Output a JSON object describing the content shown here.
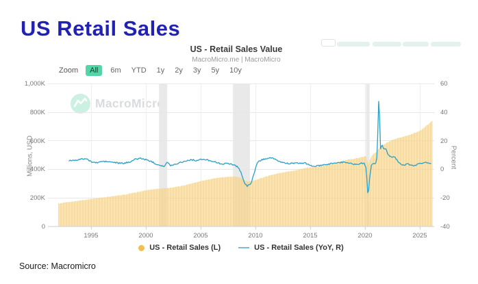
{
  "page": {
    "title": "US Retail Sales",
    "source": "Source: Macromicro"
  },
  "chart_header": {
    "title": "US - Retail Sales Value",
    "subtitle": "MacroMicro.me | MacroMicro"
  },
  "toolbar_chips": {
    "count": 5,
    "note": "truncated button chips at top-right edge"
  },
  "zoom_controls": {
    "label": "Zoom",
    "items": [
      "All",
      "6m",
      "YTD",
      "1y",
      "2y",
      "3y",
      "5y",
      "10y"
    ],
    "active": "All"
  },
  "watermark": {
    "text": "MacroMicro",
    "icon": "macromicro-logo-icon"
  },
  "legend": [
    {
      "label": "US - Retail Sales (L)",
      "marker": "circle",
      "color": "#efc04f"
    },
    {
      "label": "US - Retail Sales (YoY, R)",
      "marker": "line",
      "color": "#7fbbd4"
    }
  ],
  "colors": {
    "title_blue": "#2222b2",
    "bar": "#f6d489",
    "line": "#2da2c6",
    "legend_dot": "#efc04f",
    "legend_line": "#7fbbd4",
    "zoom_active_bg": "#52d6a7",
    "recession_band": "#e9e9e9",
    "grid": "#e7e7e7",
    "grid_vertical": "#efefef",
    "axis_line": "#d6d6d6",
    "watermark_green": "#ccf0e1",
    "chip_green": "#e4f2ed"
  },
  "chart_data": {
    "type": "combo",
    "title": "US - Retail Sales Value",
    "subtitle": "MacroMicro.me | MacroMicro",
    "x_range": [
      1992,
      2026.2
    ],
    "x_ticks": [
      "1995",
      "2000",
      "2005",
      "2010",
      "2015",
      "2020",
      "2025"
    ],
    "x_tick_years": [
      1995,
      2000,
      2005,
      2010,
      2015,
      2020,
      2025
    ],
    "grid": true,
    "legend_position": "bottom",
    "left_axis": {
      "label": "Millions, USD",
      "ticks": [
        "1,000K",
        "800K",
        "600K",
        "400K",
        "200K",
        "0"
      ],
      "tick_values": [
        1000,
        800,
        600,
        400,
        200,
        0
      ],
      "min": 0,
      "max": 1000,
      "unit": "K = thousand millions USD"
    },
    "right_axis": {
      "label": "Percent",
      "ticks": [
        "60",
        "40",
        "20",
        "0",
        "-20",
        "-40"
      ],
      "tick_values": [
        60,
        40,
        20,
        0,
        -20,
        -40
      ],
      "min": -40,
      "max": 60
    },
    "recession_bands": [
      [
        2001.2,
        2001.95
      ],
      [
        2007.95,
        2009.5
      ],
      [
        2020.1,
        2020.42
      ]
    ],
    "series": [
      {
        "name": "US - Retail Sales (L)",
        "type": "bar",
        "axis": "left",
        "unit": "K (thousand millions USD), monthly",
        "anchors": [
          [
            1992,
            158
          ],
          [
            1993,
            169
          ],
          [
            1994,
            180
          ],
          [
            1995,
            191
          ],
          [
            1996,
            201
          ],
          [
            1997,
            210
          ],
          [
            1998,
            220
          ],
          [
            1999,
            235
          ],
          [
            2000,
            251
          ],
          [
            2000.5,
            257
          ],
          [
            2001,
            262
          ],
          [
            2001.5,
            265
          ],
          [
            2002,
            268
          ],
          [
            2002.5,
            272
          ],
          [
            2003,
            278
          ],
          [
            2003.5,
            286
          ],
          [
            2004,
            296
          ],
          [
            2004.5,
            306
          ],
          [
            2005,
            316
          ],
          [
            2005.5,
            324
          ],
          [
            2006,
            332
          ],
          [
            2006.5,
            338
          ],
          [
            2007,
            343
          ],
          [
            2007.5,
            346
          ],
          [
            2008,
            347
          ],
          [
            2008.4,
            345
          ],
          [
            2008.7,
            337
          ],
          [
            2009,
            323
          ],
          [
            2009.3,
            313
          ],
          [
            2009.7,
            317
          ],
          [
            2010,
            324
          ],
          [
            2010.5,
            336
          ],
          [
            2011,
            349
          ],
          [
            2011.5,
            360
          ],
          [
            2012,
            369
          ],
          [
            2012.5,
            376
          ],
          [
            2013,
            383
          ],
          [
            2013.5,
            390
          ],
          [
            2014,
            398
          ],
          [
            2014.5,
            406
          ],
          [
            2015,
            411
          ],
          [
            2015.5,
            415
          ],
          [
            2016,
            421
          ],
          [
            2016.5,
            429
          ],
          [
            2017,
            439
          ],
          [
            2017.5,
            449
          ],
          [
            2018,
            459
          ],
          [
            2018.5,
            467
          ],
          [
            2019,
            473
          ],
          [
            2019.5,
            480
          ],
          [
            2019.9,
            488
          ],
          [
            2020.1,
            492
          ],
          [
            2020.3,
            430
          ],
          [
            2020.45,
            468
          ],
          [
            2020.6,
            494
          ],
          [
            2020.8,
            507
          ],
          [
            2021,
            517
          ],
          [
            2021.2,
            541
          ],
          [
            2021.4,
            556
          ],
          [
            2021.6,
            566
          ],
          [
            2021.8,
            575
          ],
          [
            2022,
            585
          ],
          [
            2022.3,
            596
          ],
          [
            2022.6,
            606
          ],
          [
            2023,
            616
          ],
          [
            2023.4,
            625
          ],
          [
            2023.8,
            634
          ],
          [
            2024.2,
            644
          ],
          [
            2024.6,
            656
          ],
          [
            2025,
            668
          ],
          [
            2025.3,
            684
          ],
          [
            2025.6,
            704
          ],
          [
            2025.9,
            722
          ],
          [
            2026.15,
            740
          ]
        ]
      },
      {
        "name": "US - Retail Sales (YoY, R)",
        "type": "line",
        "axis": "right",
        "unit": "percent, monthly",
        "anchors": [
          [
            1993,
            6.0
          ],
          [
            1993.5,
            6.3
          ],
          [
            1994,
            6.8
          ],
          [
            1994.5,
            7.4
          ],
          [
            1995,
            5.2
          ],
          [
            1995.5,
            4.4
          ],
          [
            1996,
            5.4
          ],
          [
            1996.5,
            5.2
          ],
          [
            1997,
            4.8
          ],
          [
            1997.5,
            4.2
          ],
          [
            1998,
            4.0
          ],
          [
            1998.5,
            5.0
          ],
          [
            1999,
            6.8
          ],
          [
            1999.5,
            7.6
          ],
          [
            2000,
            6.6
          ],
          [
            2000.5,
            5.4
          ],
          [
            2001,
            3.4
          ],
          [
            2001.4,
            2.6
          ],
          [
            2001.7,
            1.8
          ],
          [
            2001.95,
            5.0
          ],
          [
            2002.2,
            2.6
          ],
          [
            2002.6,
            3.2
          ],
          [
            2003.1,
            4.6
          ],
          [
            2003.6,
            5.6
          ],
          [
            2004.1,
            6.6
          ],
          [
            2004.6,
            6.0
          ],
          [
            2005.1,
            6.8
          ],
          [
            2005.6,
            6.4
          ],
          [
            2006.1,
            5.6
          ],
          [
            2006.6,
            4.2
          ],
          [
            2007.1,
            3.6
          ],
          [
            2007.6,
            4.0
          ],
          [
            2008,
            3.0
          ],
          [
            2008.4,
            1.6
          ],
          [
            2008.7,
            -2.5
          ],
          [
            2008.95,
            -9.0
          ],
          [
            2009.25,
            -12.2
          ],
          [
            2009.6,
            -9.6
          ],
          [
            2009.9,
            -3.0
          ],
          [
            2010.15,
            4.6
          ],
          [
            2010.5,
            6.2
          ],
          [
            2011,
            7.6
          ],
          [
            2011.5,
            8.0
          ],
          [
            2012,
            5.8
          ],
          [
            2012.5,
            4.6
          ],
          [
            2013,
            3.9
          ],
          [
            2013.5,
            4.1
          ],
          [
            2014,
            4.0
          ],
          [
            2014.5,
            4.4
          ],
          [
            2015,
            2.4
          ],
          [
            2015.5,
            2.0
          ],
          [
            2016,
            2.6
          ],
          [
            2016.5,
            3.0
          ],
          [
            2017,
            4.2
          ],
          [
            2017.5,
            4.4
          ],
          [
            2018,
            4.8
          ],
          [
            2018.5,
            4.6
          ],
          [
            2019,
            3.2
          ],
          [
            2019.5,
            3.8
          ],
          [
            2019.9,
            4.4
          ],
          [
            2020.1,
            1.0
          ],
          [
            2020.28,
            -19.9
          ],
          [
            2020.45,
            -4.0
          ],
          [
            2020.6,
            3.0
          ],
          [
            2020.75,
            4.2
          ],
          [
            2020.95,
            3.2
          ],
          [
            2021.1,
            8.5
          ],
          [
            2021.27,
            52.5
          ],
          [
            2021.42,
            13.5
          ],
          [
            2021.55,
            17.5
          ],
          [
            2021.7,
            14.0
          ],
          [
            2021.9,
            14.5
          ],
          [
            2022.1,
            10.0
          ],
          [
            2022.4,
            8.8
          ],
          [
            2022.7,
            8.6
          ],
          [
            2023,
            5.6
          ],
          [
            2023.3,
            3.2
          ],
          [
            2023.6,
            2.6
          ],
          [
            2023.9,
            3.8
          ],
          [
            2024.2,
            2.4
          ],
          [
            2024.5,
            2.6
          ],
          [
            2024.8,
            3.4
          ],
          [
            2025.1,
            4.2
          ],
          [
            2025.4,
            4.6
          ],
          [
            2025.7,
            4.4
          ],
          [
            2026,
            4.2
          ]
        ]
      }
    ]
  }
}
